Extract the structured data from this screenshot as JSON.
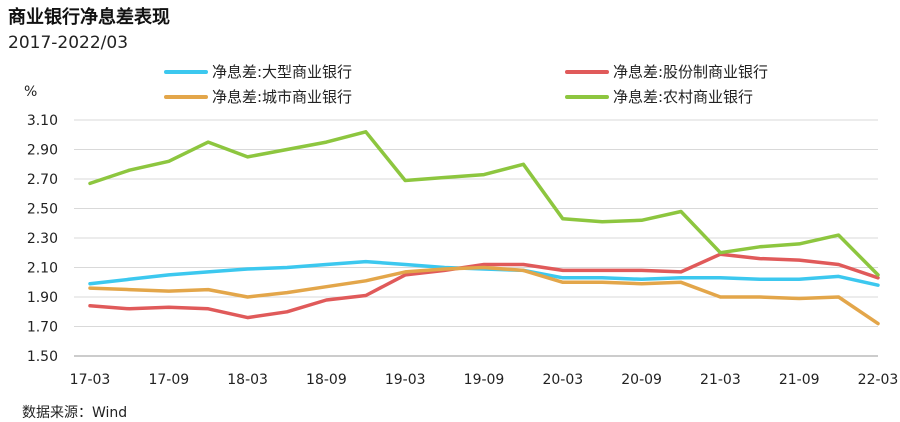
{
  "title": "商业银行净息差表现",
  "subtitle": "2017-2022/03",
  "source": "数据来源：Wind",
  "colors": {
    "large": "#3cc8ef",
    "joint": "#e05a5a",
    "city": "#e3a64a",
    "rural": "#8dc63f"
  },
  "chart_data": {
    "type": "line",
    "y_unit_label": "%",
    "ylim": [
      1.5,
      3.1
    ],
    "y_ticks": [
      "1.50",
      "1.70",
      "1.90",
      "2.10",
      "2.30",
      "2.50",
      "2.70",
      "2.90",
      "3.10"
    ],
    "x": [
      "17-03",
      "17-06",
      "17-09",
      "17-12",
      "18-03",
      "18-06",
      "18-09",
      "18-12",
      "19-03",
      "19-06",
      "19-09",
      "19-12",
      "20-03",
      "20-06",
      "20-09",
      "20-12",
      "21-03",
      "21-06",
      "21-09",
      "21-12",
      "22-03"
    ],
    "x_tick_labels": [
      "17-03",
      "17-09",
      "18-03",
      "18-09",
      "19-03",
      "19-09",
      "20-03",
      "20-09",
      "21-03",
      "21-09",
      "22-03"
    ],
    "grid": true,
    "legend_position": "top",
    "series": [
      {
        "key": "large",
        "name": "净息差:大型商业银行",
        "values": [
          1.99,
          2.02,
          2.05,
          2.07,
          2.09,
          2.1,
          2.12,
          2.14,
          2.12,
          2.1,
          2.09,
          2.08,
          2.03,
          2.03,
          2.02,
          2.03,
          2.03,
          2.02,
          2.02,
          2.04,
          1.98
        ]
      },
      {
        "key": "joint",
        "name": "净息差:股份制商业银行",
        "values": [
          1.84,
          1.82,
          1.83,
          1.82,
          1.76,
          1.8,
          1.88,
          1.91,
          2.05,
          2.08,
          2.12,
          2.12,
          2.08,
          2.08,
          2.08,
          2.07,
          2.19,
          2.16,
          2.15,
          2.12,
          2.03
        ]
      },
      {
        "key": "city",
        "name": "净息差:城市商业银行",
        "values": [
          1.96,
          1.95,
          1.94,
          1.95,
          1.9,
          1.93,
          1.97,
          2.01,
          2.07,
          2.09,
          2.1,
          2.08,
          2.0,
          2.0,
          1.99,
          2.0,
          1.9,
          1.9,
          1.89,
          1.9,
          1.72
        ]
      },
      {
        "key": "rural",
        "name": "净息差:农村商业银行",
        "values": [
          2.67,
          2.76,
          2.82,
          2.95,
          2.85,
          2.9,
          2.95,
          3.02,
          2.69,
          2.71,
          2.73,
          2.8,
          2.43,
          2.41,
          2.42,
          2.48,
          2.2,
          2.24,
          2.26,
          2.32,
          2.05
        ]
      }
    ]
  }
}
